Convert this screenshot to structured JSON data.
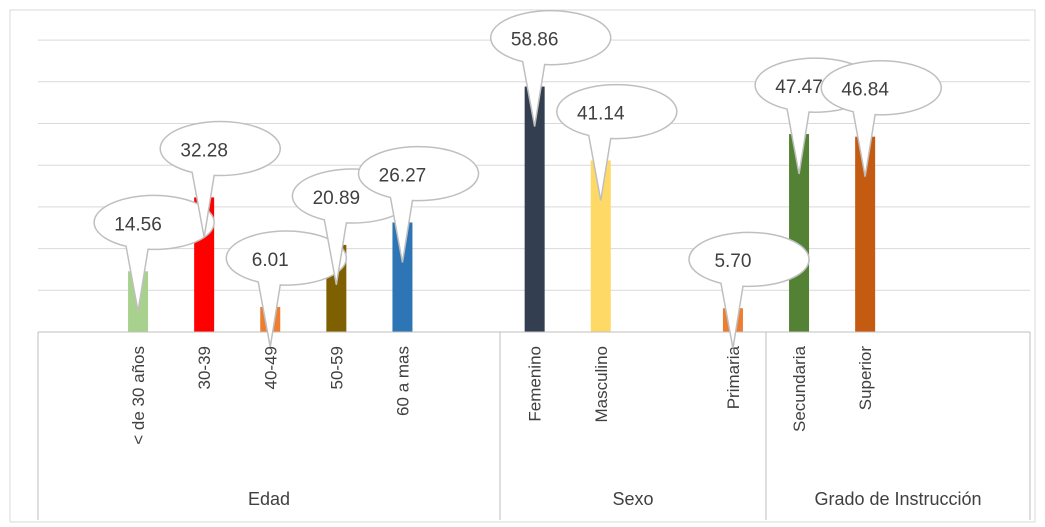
{
  "chart_data": {
    "type": "bar",
    "groups": [
      {
        "name": "Edad",
        "categories": [
          "< de 30 años",
          "30-39",
          "40-49",
          "50-59",
          "60 a mas"
        ],
        "values": [
          14.56,
          32.28,
          6.01,
          20.89,
          26.27
        ],
        "labels": [
          "14.56",
          "32.28",
          "6.01",
          "20.89",
          "26.27"
        ],
        "colors": [
          "#a9d18e",
          "#ff0000",
          "#ed7d31",
          "#7f6000",
          "#2e75b6"
        ]
      },
      {
        "name": "Sexo",
        "categories": [
          "Femenino",
          "Masculino"
        ],
        "values": [
          58.86,
          41.14
        ],
        "labels": [
          "58.86",
          "41.14"
        ],
        "colors": [
          "#333f50",
          "#ffd966"
        ]
      },
      {
        "name": "Grado de Instrucción",
        "categories": [
          "Primaria",
          "Secundaria",
          "Superior"
        ],
        "values": [
          5.7,
          47.47,
          46.84
        ],
        "labels": [
          "5.70",
          "47.47",
          "46.84"
        ],
        "colors": [
          "#ed7d31",
          "#548235",
          "#c55a11"
        ]
      }
    ],
    "ylim": [
      0,
      70
    ],
    "grid": true,
    "legend": "none",
    "data_labels": "callout"
  }
}
